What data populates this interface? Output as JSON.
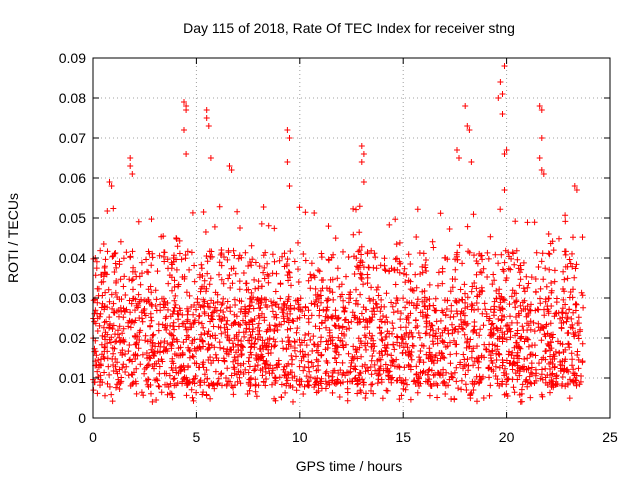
{
  "chart_data": {
    "type": "scatter",
    "title": "Day 115 of 2018, Rate Of TEC Index for receiver stng",
    "xlabel": "GPS time / hours",
    "ylabel": "ROTI / TECUs",
    "xlim": [
      0,
      25
    ],
    "ylim": [
      0,
      0.09
    ],
    "xticks": [
      0,
      5,
      10,
      15,
      20,
      25
    ],
    "xtick_labels": [
      "0",
      "5",
      "10",
      "15",
      "20",
      "25"
    ],
    "yticks": [
      0,
      0.01,
      0.02,
      0.03,
      0.04,
      0.05,
      0.06,
      0.07,
      0.08,
      0.09
    ],
    "ytick_labels": [
      "0",
      "0.01",
      "0.02",
      "0.03",
      "0.04",
      "0.05",
      "0.06",
      "0.07",
      "0.08",
      "0.09"
    ],
    "grid": true,
    "marker": "plus",
    "color": "#ff0000",
    "x_range_observed": [
      0,
      23.7
    ],
    "typical_range": [
      0.008,
      0.03
    ],
    "outliers": [
      {
        "x": 0.8,
        "y": 0.059
      },
      {
        "x": 0.9,
        "y": 0.058
      },
      {
        "x": 1.8,
        "y": 0.065
      },
      {
        "x": 1.8,
        "y": 0.063
      },
      {
        "x": 1.9,
        "y": 0.061
      },
      {
        "x": 4.4,
        "y": 0.079
      },
      {
        "x": 4.5,
        "y": 0.078
      },
      {
        "x": 4.5,
        "y": 0.077
      },
      {
        "x": 4.4,
        "y": 0.072
      },
      {
        "x": 4.5,
        "y": 0.066
      },
      {
        "x": 5.5,
        "y": 0.077
      },
      {
        "x": 5.5,
        "y": 0.075
      },
      {
        "x": 5.6,
        "y": 0.073
      },
      {
        "x": 5.7,
        "y": 0.065
      },
      {
        "x": 6.6,
        "y": 0.063
      },
      {
        "x": 6.7,
        "y": 0.062
      },
      {
        "x": 9.4,
        "y": 0.072
      },
      {
        "x": 9.5,
        "y": 0.07
      },
      {
        "x": 9.4,
        "y": 0.064
      },
      {
        "x": 9.5,
        "y": 0.058
      },
      {
        "x": 13.0,
        "y": 0.068
      },
      {
        "x": 13.1,
        "y": 0.066
      },
      {
        "x": 13.0,
        "y": 0.064
      },
      {
        "x": 13.1,
        "y": 0.059
      },
      {
        "x": 17.6,
        "y": 0.067
      },
      {
        "x": 17.7,
        "y": 0.065
      },
      {
        "x": 18.0,
        "y": 0.078
      },
      {
        "x": 18.1,
        "y": 0.073
      },
      {
        "x": 18.2,
        "y": 0.072
      },
      {
        "x": 18.3,
        "y": 0.064
      },
      {
        "x": 19.6,
        "y": 0.08
      },
      {
        "x": 19.7,
        "y": 0.084
      },
      {
        "x": 19.8,
        "y": 0.081
      },
      {
        "x": 19.8,
        "y": 0.076
      },
      {
        "x": 19.9,
        "y": 0.088
      },
      {
        "x": 19.9,
        "y": 0.066
      },
      {
        "x": 20.0,
        "y": 0.067
      },
      {
        "x": 19.9,
        "y": 0.057
      },
      {
        "x": 21.6,
        "y": 0.078
      },
      {
        "x": 21.7,
        "y": 0.077
      },
      {
        "x": 21.7,
        "y": 0.07
      },
      {
        "x": 21.6,
        "y": 0.065
      },
      {
        "x": 21.7,
        "y": 0.062
      },
      {
        "x": 21.8,
        "y": 0.061
      },
      {
        "x": 23.3,
        "y": 0.058
      },
      {
        "x": 23.4,
        "y": 0.057
      }
    ]
  }
}
